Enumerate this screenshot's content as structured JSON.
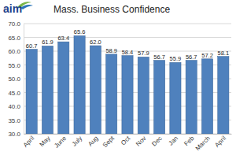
{
  "chart_data": {
    "type": "bar",
    "title": "Mass. Business Confidence",
    "annotations": [
      "aim"
    ],
    "categories": [
      "April",
      "May",
      "June",
      "July",
      "Aug",
      "Sept",
      "Oct",
      "Nov",
      "Dec",
      "Jan",
      "Feb",
      "March",
      "April"
    ],
    "values": [
      60.7,
      61.9,
      63.4,
      65.6,
      62.0,
      58.9,
      58.4,
      57.9,
      56.7,
      55.9,
      56.7,
      57.2,
      58.1
    ],
    "value_labels": [
      "60.7",
      "61.9",
      "63.4",
      "65.6",
      "62.0",
      "58.9",
      "58.4",
      "57.9",
      "56.7",
      "55.9",
      "56.7",
      "57.2",
      "58.1"
    ],
    "data_labels": true,
    "color": "#4f81bd",
    "ylim": [
      30,
      70
    ],
    "yticks": [
      {
        "value": 30,
        "label": "30.0"
      },
      {
        "value": 35,
        "label": "35.0"
      },
      {
        "value": 40,
        "label": "40.0"
      },
      {
        "value": 45,
        "label": "45.0"
      },
      {
        "value": 50,
        "label": "50.0"
      },
      {
        "value": 55,
        "label": "55.0"
      },
      {
        "value": 60,
        "label": "60.0"
      },
      {
        "value": 65,
        "label": "65.0"
      },
      {
        "value": 70,
        "label": "70.0"
      }
    ],
    "grid": true
  }
}
